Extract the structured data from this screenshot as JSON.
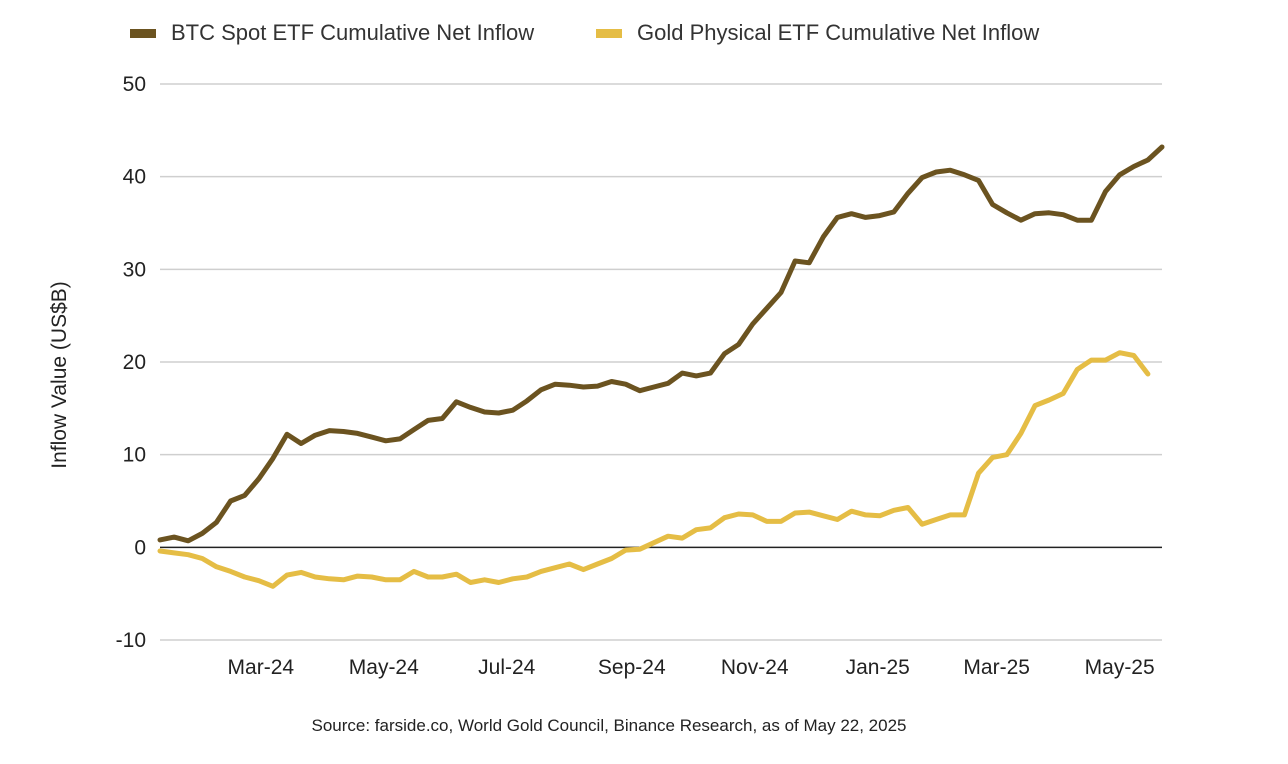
{
  "chart_data": {
    "type": "line",
    "ylabel": "Inflow Value (US$B)",
    "ylim": [
      -10,
      50
    ],
    "yticks": [
      -10,
      0,
      10,
      20,
      30,
      40,
      50
    ],
    "xlim": [
      "2024-01-11",
      "2025-05-22"
    ],
    "xticks": [
      {
        "date": "2024-03-01",
        "label": "Mar-24"
      },
      {
        "date": "2024-05-01",
        "label": "May-24"
      },
      {
        "date": "2024-07-01",
        "label": "Jul-24"
      },
      {
        "date": "2024-09-01",
        "label": "Sep-24"
      },
      {
        "date": "2024-11-01",
        "label": "Nov-24"
      },
      {
        "date": "2025-01-01",
        "label": "Jan-25"
      },
      {
        "date": "2025-03-01",
        "label": "Mar-25"
      },
      {
        "date": "2025-05-01",
        "label": "May-25"
      }
    ],
    "grid": true,
    "legend_position": "top",
    "source": "Source: farside.co, World Gold Council, Binance Research, as of May 22, 2025",
    "series": [
      {
        "name": "BTC Spot ETF Cumulative Net Inflow",
        "color": "#6b5320",
        "points": [
          [
            "2024-01-11",
            0.8
          ],
          [
            "2024-01-18",
            1.1
          ],
          [
            "2024-01-25",
            0.7
          ],
          [
            "2024-02-01",
            1.5
          ],
          [
            "2024-02-08",
            2.7
          ],
          [
            "2024-02-15",
            5.0
          ],
          [
            "2024-02-22",
            5.6
          ],
          [
            "2024-02-29",
            7.4
          ],
          [
            "2024-03-07",
            9.6
          ],
          [
            "2024-03-14",
            12.2
          ],
          [
            "2024-03-21",
            11.2
          ],
          [
            "2024-03-28",
            12.1
          ],
          [
            "2024-04-04",
            12.6
          ],
          [
            "2024-04-11",
            12.5
          ],
          [
            "2024-04-18",
            12.3
          ],
          [
            "2024-04-25",
            11.9
          ],
          [
            "2024-05-02",
            11.5
          ],
          [
            "2024-05-09",
            11.7
          ],
          [
            "2024-05-16",
            12.7
          ],
          [
            "2024-05-23",
            13.7
          ],
          [
            "2024-05-30",
            13.9
          ],
          [
            "2024-06-06",
            15.7
          ],
          [
            "2024-06-13",
            15.1
          ],
          [
            "2024-06-20",
            14.6
          ],
          [
            "2024-06-27",
            14.5
          ],
          [
            "2024-07-04",
            14.8
          ],
          [
            "2024-07-11",
            15.8
          ],
          [
            "2024-07-18",
            17.0
          ],
          [
            "2024-07-25",
            17.6
          ],
          [
            "2024-08-01",
            17.5
          ],
          [
            "2024-08-08",
            17.3
          ],
          [
            "2024-08-15",
            17.4
          ],
          [
            "2024-08-22",
            17.9
          ],
          [
            "2024-08-29",
            17.6
          ],
          [
            "2024-09-05",
            16.9
          ],
          [
            "2024-09-12",
            17.3
          ],
          [
            "2024-09-19",
            17.7
          ],
          [
            "2024-09-26",
            18.8
          ],
          [
            "2024-10-03",
            18.5
          ],
          [
            "2024-10-10",
            18.8
          ],
          [
            "2024-10-17",
            20.9
          ],
          [
            "2024-10-24",
            21.9
          ],
          [
            "2024-10-31",
            24.1
          ],
          [
            "2024-11-07",
            25.8
          ],
          [
            "2024-11-14",
            27.5
          ],
          [
            "2024-11-21",
            30.9
          ],
          [
            "2024-11-28",
            30.7
          ],
          [
            "2024-12-05",
            33.5
          ],
          [
            "2024-12-12",
            35.6
          ],
          [
            "2024-12-19",
            36.0
          ],
          [
            "2024-12-26",
            35.6
          ],
          [
            "2025-01-02",
            35.8
          ],
          [
            "2025-01-09",
            36.2
          ],
          [
            "2025-01-16",
            38.2
          ],
          [
            "2025-01-23",
            39.9
          ],
          [
            "2025-01-30",
            40.5
          ],
          [
            "2025-02-06",
            40.7
          ],
          [
            "2025-02-13",
            40.2
          ],
          [
            "2025-02-20",
            39.6
          ],
          [
            "2025-02-27",
            37.0
          ],
          [
            "2025-03-06",
            36.1
          ],
          [
            "2025-03-13",
            35.3
          ],
          [
            "2025-03-20",
            36.0
          ],
          [
            "2025-03-27",
            36.1
          ],
          [
            "2025-04-03",
            35.9
          ],
          [
            "2025-04-10",
            35.3
          ],
          [
            "2025-04-17",
            35.3
          ],
          [
            "2025-04-24",
            38.4
          ],
          [
            "2025-05-01",
            40.2
          ],
          [
            "2025-05-08",
            41.1
          ],
          [
            "2025-05-15",
            41.8
          ],
          [
            "2025-05-22",
            43.2
          ]
        ]
      },
      {
        "name": "Gold Physical ETF Cumulative Net Inflow",
        "color": "#e5bd45",
        "points": [
          [
            "2024-01-11",
            -0.4
          ],
          [
            "2024-01-18",
            -0.6
          ],
          [
            "2024-01-25",
            -0.8
          ],
          [
            "2024-02-01",
            -1.2
          ],
          [
            "2024-02-08",
            -2.1
          ],
          [
            "2024-02-15",
            -2.6
          ],
          [
            "2024-02-22",
            -3.2
          ],
          [
            "2024-02-29",
            -3.6
          ],
          [
            "2024-03-07",
            -4.2
          ],
          [
            "2024-03-14",
            -3.0
          ],
          [
            "2024-03-21",
            -2.7
          ],
          [
            "2024-03-28",
            -3.2
          ],
          [
            "2024-04-04",
            -3.4
          ],
          [
            "2024-04-11",
            -3.5
          ],
          [
            "2024-04-18",
            -3.1
          ],
          [
            "2024-04-25",
            -3.2
          ],
          [
            "2024-05-02",
            -3.5
          ],
          [
            "2024-05-09",
            -3.5
          ],
          [
            "2024-05-16",
            -2.6
          ],
          [
            "2024-05-23",
            -3.2
          ],
          [
            "2024-05-30",
            -3.2
          ],
          [
            "2024-06-06",
            -2.9
          ],
          [
            "2024-06-13",
            -3.8
          ],
          [
            "2024-06-20",
            -3.5
          ],
          [
            "2024-06-27",
            -3.8
          ],
          [
            "2024-07-04",
            -3.4
          ],
          [
            "2024-07-11",
            -3.2
          ],
          [
            "2024-07-18",
            -2.6
          ],
          [
            "2024-07-25",
            -2.2
          ],
          [
            "2024-08-01",
            -1.8
          ],
          [
            "2024-08-08",
            -2.4
          ],
          [
            "2024-08-15",
            -1.8
          ],
          [
            "2024-08-22",
            -1.2
          ],
          [
            "2024-08-29",
            -0.3
          ],
          [
            "2024-09-05",
            -0.2
          ],
          [
            "2024-09-12",
            0.5
          ],
          [
            "2024-09-19",
            1.2
          ],
          [
            "2024-09-26",
            1.0
          ],
          [
            "2024-10-03",
            1.9
          ],
          [
            "2024-10-10",
            2.1
          ],
          [
            "2024-10-17",
            3.2
          ],
          [
            "2024-10-24",
            3.6
          ],
          [
            "2024-10-31",
            3.5
          ],
          [
            "2024-11-07",
            2.8
          ],
          [
            "2024-11-14",
            2.8
          ],
          [
            "2024-11-21",
            3.7
          ],
          [
            "2024-11-28",
            3.8
          ],
          [
            "2024-12-05",
            3.4
          ],
          [
            "2024-12-12",
            3.0
          ],
          [
            "2024-12-19",
            3.9
          ],
          [
            "2024-12-26",
            3.5
          ],
          [
            "2025-01-02",
            3.4
          ],
          [
            "2025-01-09",
            4.0
          ],
          [
            "2025-01-16",
            4.3
          ],
          [
            "2025-01-23",
            2.5
          ],
          [
            "2025-01-30",
            3.0
          ],
          [
            "2025-02-06",
            3.5
          ],
          [
            "2025-02-13",
            3.5
          ],
          [
            "2025-02-20",
            8.0
          ],
          [
            "2025-02-27",
            9.7
          ],
          [
            "2025-03-06",
            10.0
          ],
          [
            "2025-03-13",
            12.3
          ],
          [
            "2025-03-20",
            15.3
          ],
          [
            "2025-03-27",
            15.9
          ],
          [
            "2025-04-03",
            16.6
          ],
          [
            "2025-04-10",
            19.2
          ],
          [
            "2025-04-17",
            20.2
          ],
          [
            "2025-04-24",
            20.2
          ],
          [
            "2025-05-01",
            21.0
          ],
          [
            "2025-05-08",
            20.7
          ],
          [
            "2025-05-15",
            18.7
          ]
        ]
      }
    ]
  }
}
